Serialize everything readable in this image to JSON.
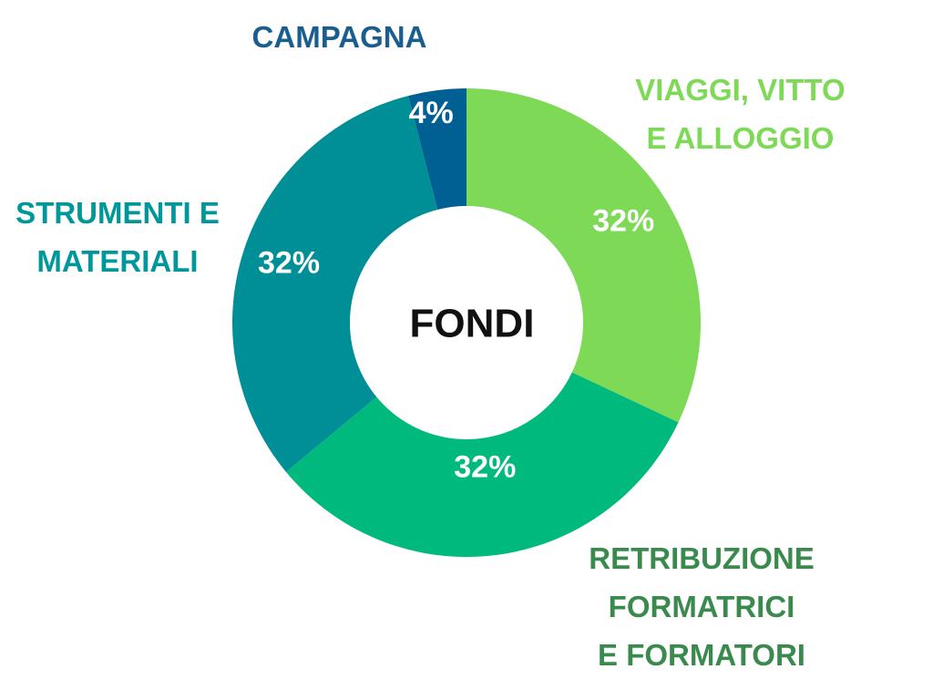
{
  "chart_data": {
    "type": "pie",
    "center_label": "FONDI",
    "slices": [
      {
        "label_lines": [
          "VIAGGI, VITTO",
          "E ALLOGGIO"
        ],
        "value": 32,
        "value_label": "32%",
        "color": "#7ed957",
        "label_color": "#7ed957"
      },
      {
        "label_lines": [
          "RETRIBUZIONE",
          "FORMATRICI",
          "E FORMATORI"
        ],
        "value": 32,
        "value_label": "32%",
        "color": "#00b97c",
        "label_color": "#3a8a4e"
      },
      {
        "label_lines": [
          "STRUMENTI E",
          "MATERIALI"
        ],
        "value": 32,
        "value_label": "32%",
        "color": "#008f96",
        "label_color": "#00979a"
      },
      {
        "label_lines": [
          "CAMPAGNA"
        ],
        "value": 4,
        "value_label": "4%",
        "color": "#005f93",
        "label_color": "#1a5e8f"
      }
    ]
  }
}
